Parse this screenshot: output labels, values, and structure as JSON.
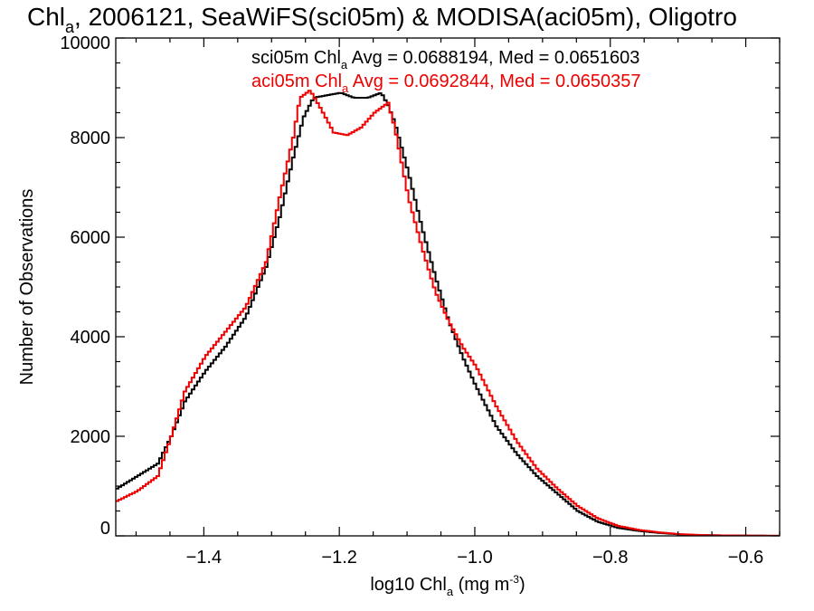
{
  "chart_data": {
    "type": "line",
    "step": true,
    "title": {
      "pre": "Chl",
      "sub": "a",
      "post": ", 2006121, SeaWiFS(sci05m) & MODISA(aci05m), Oligotro"
    },
    "xlabel": {
      "pre": "log10 Chl",
      "sub": "a",
      "mid": " (mg m",
      "sup": "-3",
      "post": ")"
    },
    "ylabel": "Number of Observations",
    "xlim": [
      -1.53,
      -0.55
    ],
    "ylim": [
      0,
      10000
    ],
    "xticks": [
      -1.4,
      -1.2,
      -1.0,
      -0.8,
      -0.6
    ],
    "xtick_labels": [
      "−1.4",
      "−1.2",
      "−1.0",
      "−0.8",
      "−0.6"
    ],
    "yticks": [
      0,
      2000,
      4000,
      6000,
      8000,
      10000
    ],
    "ytick_labels": [
      "0",
      "2000",
      "4000",
      "6000",
      "8000",
      "10000"
    ],
    "annotations": [
      {
        "pre": "sci05m Chl",
        "sub": "a",
        "post": " Avg = 0.0688194, Med = 0.0651603",
        "color": "#000000"
      },
      {
        "pre": "aci05m Chl",
        "sub": "a",
        "post": " Avg = 0.0692844, Med = 0.0650357",
        "color": "#ee0000"
      }
    ],
    "series": [
      {
        "name": "sci05m",
        "color": "#000000",
        "x": [
          -1.53,
          -1.5,
          -1.47,
          -1.45,
          -1.43,
          -1.4,
          -1.37,
          -1.34,
          -1.31,
          -1.29,
          -1.27,
          -1.255,
          -1.24,
          -1.22,
          -1.2,
          -1.18,
          -1.16,
          -1.14,
          -1.13,
          -1.12,
          -1.1,
          -1.08,
          -1.06,
          -1.04,
          -1.02,
          -1.0,
          -0.97,
          -0.94,
          -0.91,
          -0.88,
          -0.85,
          -0.82,
          -0.79,
          -0.76,
          -0.73,
          -0.7,
          -0.67,
          -0.64,
          -0.6,
          -0.57,
          -0.55
        ],
        "y": [
          950,
          1200,
          1450,
          2000,
          2700,
          3300,
          3800,
          4400,
          5400,
          6400,
          7600,
          8400,
          8800,
          8850,
          8900,
          8800,
          8800,
          8900,
          8650,
          8300,
          7300,
          6200,
          5200,
          4300,
          3600,
          3000,
          2200,
          1650,
          1200,
          850,
          500,
          280,
          160,
          100,
          60,
          30,
          15,
          10,
          5,
          3,
          2
        ]
      },
      {
        "name": "aci05m",
        "color": "#ee0000",
        "x": [
          -1.53,
          -1.5,
          -1.47,
          -1.45,
          -1.43,
          -1.4,
          -1.37,
          -1.34,
          -1.31,
          -1.29,
          -1.27,
          -1.26,
          -1.245,
          -1.23,
          -1.21,
          -1.19,
          -1.17,
          -1.15,
          -1.13,
          -1.12,
          -1.1,
          -1.08,
          -1.06,
          -1.04,
          -1.02,
          -1.0,
          -0.97,
          -0.94,
          -0.91,
          -0.88,
          -0.85,
          -0.82,
          -0.79,
          -0.76,
          -0.73,
          -0.7,
          -0.67,
          -0.64,
          -0.6,
          -0.57,
          -0.55
        ],
        "y": [
          700,
          900,
          1200,
          2000,
          2900,
          3600,
          4100,
          4600,
          5500,
          6800,
          8000,
          8800,
          8950,
          8600,
          8100,
          8050,
          8200,
          8500,
          8700,
          8200,
          6800,
          5800,
          4900,
          4300,
          3800,
          3400,
          2600,
          1900,
          1350,
          950,
          600,
          350,
          200,
          120,
          70,
          35,
          18,
          10,
          6,
          3,
          2
        ]
      }
    ]
  }
}
